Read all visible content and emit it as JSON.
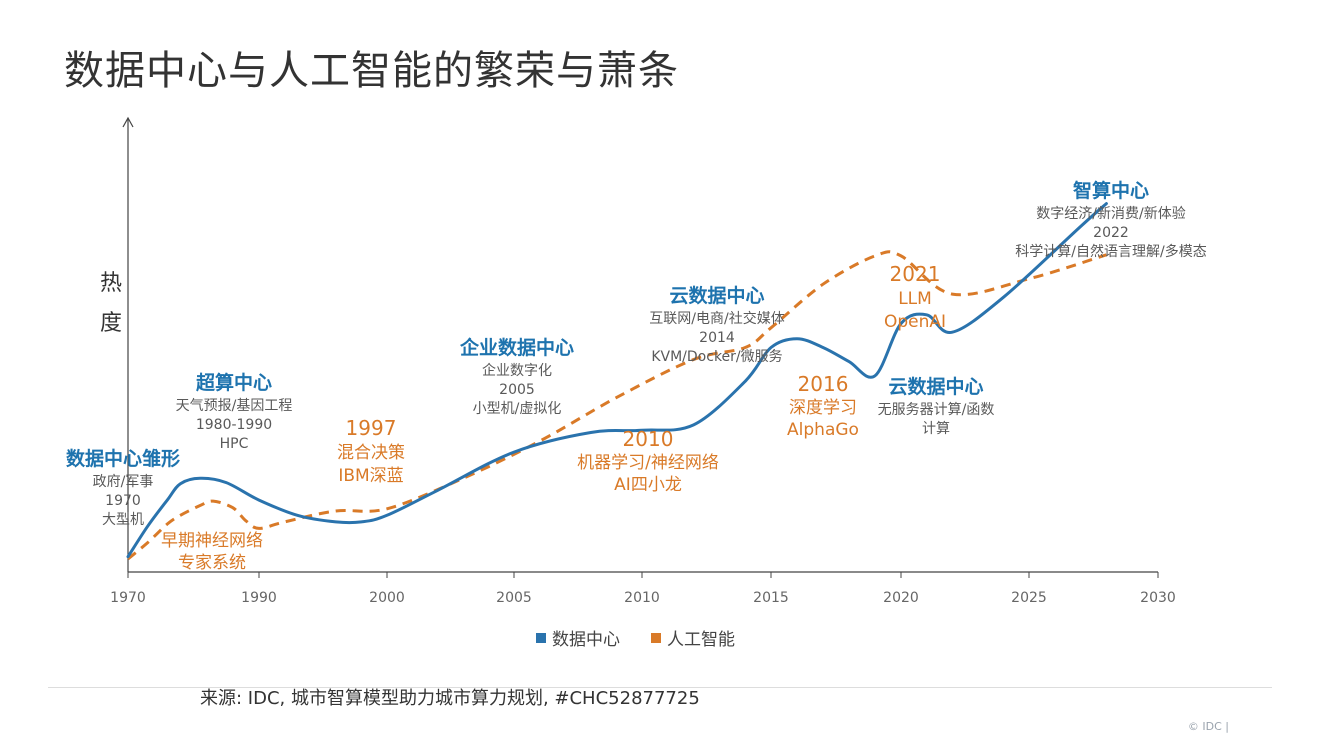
{
  "page": {
    "title": "数据中心与人工智能的繁荣与萧条",
    "source": "来源: IDC, 城市智算模型助力城市算力规划, #CHC52877725",
    "copyright": "© IDC |"
  },
  "chart_data": {
    "type": "line",
    "ylabel": "热度",
    "xlim": [
      1970,
      2030
    ],
    "xticks": [
      1970,
      1990,
      2000,
      2005,
      2010,
      2015,
      2020,
      2025,
      2030
    ],
    "series": [
      {
        "name": "数据中心",
        "color": "#2a73ad",
        "style": "solid",
        "x": [
          1970,
          1973,
          1976,
          1978,
          1981,
          1985,
          1990,
          1993,
          1996,
          1998,
          2000,
          2002,
          2005,
          2008,
          2010,
          2012,
          2014,
          2015,
          2016,
          2017,
          2018,
          2019,
          2020,
          2021,
          2022,
          2024,
          2027,
          2028
        ],
        "y": [
          0.14,
          0.42,
          0.66,
          0.81,
          0.86,
          0.82,
          0.66,
          0.52,
          0.46,
          0.46,
          0.52,
          0.75,
          1.1,
          1.28,
          1.3,
          1.35,
          1.75,
          2.06,
          2.14,
          2.06,
          1.93,
          1.8,
          2.28,
          2.36,
          2.2,
          2.52,
          3.17,
          3.38
        ]
      },
      {
        "name": "人工智能",
        "color": "#d97a28",
        "style": "dashed",
        "x": [
          1970,
          1973,
          1976,
          1978,
          1981,
          1983,
          1986,
          1988,
          1990,
          1992,
          1996,
          2000,
          2003,
          2006,
          2009,
          2012,
          2014,
          2015,
          2017,
          2019,
          2020,
          2022,
          2025,
          2028
        ],
        "y": [
          0.12,
          0.27,
          0.44,
          0.52,
          0.61,
          0.65,
          0.59,
          0.47,
          0.4,
          0.46,
          0.56,
          0.58,
          0.86,
          1.2,
          1.6,
          1.95,
          2.06,
          2.24,
          2.64,
          2.9,
          2.9,
          2.55,
          2.69,
          2.91
        ]
      }
    ],
    "legend": {
      "position": "bottom",
      "items": [
        "数据中心",
        "人工智能"
      ]
    },
    "annotations": [
      {
        "series": "数据中心",
        "title": "数据中心雏形",
        "lines": [
          "政府/军事",
          "1970",
          "大型机"
        ]
      },
      {
        "series": "数据中心",
        "title": "超算中心",
        "lines": [
          "天气预报/基因工程",
          "1980-1990",
          "HPC"
        ]
      },
      {
        "series": "数据中心",
        "title": "企业数据中心",
        "lines": [
          "企业数字化",
          "2005",
          "小型机/虚拟化"
        ]
      },
      {
        "series": "数据中心",
        "title": "云数据中心",
        "lines": [
          "互联网/电商/社交媒体",
          "2014",
          "KVM/Docker/微服务"
        ]
      },
      {
        "series": "数据中心",
        "title": "云数据中心",
        "lines": [
          "无服务器计算/函数",
          "计算"
        ]
      },
      {
        "series": "数据中心",
        "title": "智算中心",
        "lines": [
          "数字经济/新消费/新体验",
          "2022",
          "科学计算/自然语言理解/多模态"
        ]
      },
      {
        "series": "人工智能",
        "title": "早期神经网络",
        "lines": [
          "专家系统"
        ]
      },
      {
        "series": "人工智能",
        "title": "1997",
        "lines": [
          "混合决策",
          "IBM深蓝"
        ]
      },
      {
        "series": "人工智能",
        "title": "2010",
        "lines": [
          "机器学习/神经网络",
          "AI四小龙"
        ]
      },
      {
        "series": "人工智能",
        "title": "2016",
        "lines": [
          "深度学习",
          "AlphaGo"
        ]
      },
      {
        "series": "人工智能",
        "title": "2021",
        "lines": [
          "LLM",
          "OpenAI"
        ]
      }
    ]
  }
}
